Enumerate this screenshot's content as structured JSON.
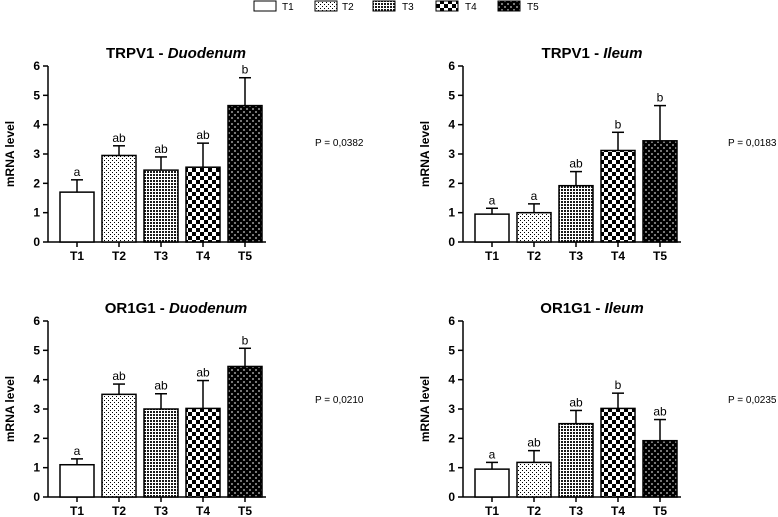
{
  "legend": [
    {
      "label": "T1",
      "pattern": "solid-white"
    },
    {
      "label": "T2",
      "pattern": "fine-dots"
    },
    {
      "label": "T3",
      "pattern": "dense-crosshatch"
    },
    {
      "label": "T4",
      "pattern": "checkerboard"
    },
    {
      "label": "T5",
      "pattern": "dark-checkerboard"
    }
  ],
  "colors": {
    "ink": "#000000",
    "background": "#ffffff"
  },
  "chart_data": [
    {
      "type": "bar",
      "title_gene": "TRPV1",
      "title_sep": " - ",
      "title_tissue": "Duodenum",
      "ylabel": "mRNA level",
      "xlabel": "",
      "ylim": [
        0,
        6
      ],
      "yticks": [
        0,
        1,
        2,
        3,
        4,
        5,
        6
      ],
      "categories": [
        "T1",
        "T2",
        "T3",
        "T4",
        "T5"
      ],
      "values": [
        1.7,
        2.95,
        2.45,
        2.55,
        4.65
      ],
      "errors": [
        0.42,
        0.33,
        0.45,
        0.82,
        0.95
      ],
      "letters": [
        "a",
        "ab",
        "ab",
        "ab",
        "b"
      ],
      "pvalue": "P = 0,0382"
    },
    {
      "type": "bar",
      "title_gene": "TRPV1",
      "title_sep": " - ",
      "title_tissue": "Ileum",
      "ylabel": "mRNA level",
      "xlabel": "",
      "ylim": [
        0,
        6
      ],
      "yticks": [
        0,
        1,
        2,
        3,
        4,
        5,
        6
      ],
      "categories": [
        "T1",
        "T2",
        "T3",
        "T4",
        "T5"
      ],
      "values": [
        0.95,
        1.0,
        1.92,
        3.12,
        3.45
      ],
      "errors": [
        0.2,
        0.3,
        0.48,
        0.62,
        1.2
      ],
      "letters": [
        "a",
        "a",
        "ab",
        "b",
        "b"
      ],
      "pvalue": "P = 0,0183"
    },
    {
      "type": "bar",
      "title_gene": "OR1G1",
      "title_sep": " - ",
      "title_tissue": "Duodenum",
      "ylabel": "mRNA level",
      "xlabel": "",
      "ylim": [
        0,
        6
      ],
      "yticks": [
        0,
        1,
        2,
        3,
        4,
        5,
        6
      ],
      "categories": [
        "T1",
        "T2",
        "T3",
        "T4",
        "T5"
      ],
      "values": [
        1.1,
        3.5,
        3.0,
        3.02,
        4.45
      ],
      "errors": [
        0.2,
        0.35,
        0.52,
        0.95,
        0.62
      ],
      "letters": [
        "a",
        "ab",
        "ab",
        "ab",
        "b"
      ],
      "pvalue": "P = 0,0210"
    },
    {
      "type": "bar",
      "title_gene": "OR1G1",
      "title_sep": " - ",
      "title_tissue": "Ileum",
      "ylabel": "mRNA level",
      "xlabel": "",
      "ylim": [
        0,
        6
      ],
      "yticks": [
        0,
        1,
        2,
        3,
        4,
        5,
        6
      ],
      "categories": [
        "T1",
        "T2",
        "T3",
        "T4",
        "T5"
      ],
      "values": [
        0.95,
        1.18,
        2.5,
        3.02,
        1.92
      ],
      "errors": [
        0.23,
        0.4,
        0.45,
        0.52,
        0.72
      ],
      "letters": [
        "a",
        "ab",
        "ab",
        "b",
        "ab"
      ],
      "pvalue": "P = 0,0235"
    }
  ]
}
